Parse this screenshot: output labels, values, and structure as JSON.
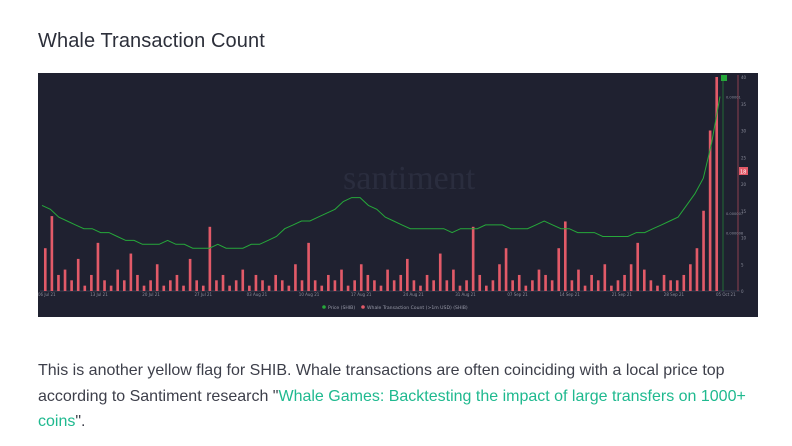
{
  "article": {
    "section_title": "Whale Transaction Count",
    "paragraph": {
      "before_link": "This is another yellow flag for SHIB. Whale transactions are often coinciding with a local price top according to Santiment research \"",
      "link_text": "Whale Games: Backtesting the impact of large transfers on 1000+ coins",
      "after_link": "\"."
    }
  },
  "chart_data": {
    "type": "bar",
    "watermark": "santiment",
    "x_ticks": [
      "06 Jul 21",
      "13 Jul 21",
      "20 Jul 21",
      "27 Jul 21",
      "03 Aug 21",
      "10 Aug 21",
      "17 Aug 21",
      "24 Aug 21",
      "31 Aug 21",
      "07 Sep 21",
      "14 Sep 21",
      "21 Sep 21",
      "28 Sep 21",
      "05 Oct 21"
    ],
    "y_right_price_ticks": [
      "0.00001",
      "0.000007",
      "0.000008"
    ],
    "y_right_count_ticks": [
      "40",
      "35",
      "30",
      "25",
      "20",
      "15",
      "10",
      "5",
      "0"
    ],
    "price_marker": "green",
    "count_marker": "18",
    "legend": [
      "Price (SHIB)",
      "Whale Transaction Count (>1m USD) (SHIB)"
    ],
    "colors": {
      "price": "#26a83a",
      "count": "#e25a68",
      "background": "#1f2130",
      "link": "#1fb98f"
    },
    "series": [
      {
        "name": "Price (SHIB)",
        "values": [
          7.2e-06,
          7.1e-06,
          6.9e-06,
          6.8e-06,
          6.7e-06,
          6.6e-06,
          6.6e-06,
          6.5e-06,
          6.5e-06,
          6.4e-06,
          6.3e-06,
          6.3e-06,
          6.2e-06,
          6.2e-06,
          6.2e-06,
          6.3e-06,
          6.2e-06,
          6.2e-06,
          6.1e-06,
          6.1e-06,
          6.1e-06,
          6.2e-06,
          6.1e-06,
          6.1e-06,
          6.1e-06,
          6.2e-06,
          6.2e-06,
          6.3e-06,
          6.4e-06,
          6.6e-06,
          6.7e-06,
          6.8e-06,
          6.8e-06,
          6.9e-06,
          7e-06,
          7.1e-06,
          7.3e-06,
          7.4e-06,
          7.4e-06,
          7.2e-06,
          7.1e-06,
          6.9e-06,
          6.8e-06,
          6.7e-06,
          6.6e-06,
          6.6e-06,
          6.6e-06,
          6.6e-06,
          6.6e-06,
          6.5e-06,
          6.6e-06,
          6.6e-06,
          6.6e-06,
          6.7e-06,
          6.7e-06,
          6.7e-06,
          6.6e-06,
          6.6e-06,
          6.6e-06,
          6.7e-06,
          6.8e-06,
          6.7e-06,
          6.6e-06,
          6.6e-06,
          6.5e-06,
          6.5e-06,
          6.5e-06,
          6.4e-06,
          6.4e-06,
          6.4e-06,
          6.4e-06,
          6.5e-06,
          6.5e-06,
          6.6e-06,
          6.7e-06,
          6.8e-06,
          6.9e-06,
          7.2e-06,
          7.5e-06,
          7.9e-06,
          8.8e-06,
          1e-05
        ]
      },
      {
        "name": "Whale Transaction Count (>1m USD) (SHIB)",
        "values": [
          8,
          14,
          3,
          4,
          2,
          6,
          1,
          3,
          9,
          2,
          1,
          4,
          2,
          7,
          3,
          1,
          2,
          5,
          1,
          2,
          3,
          1,
          6,
          2,
          1,
          12,
          2,
          3,
          1,
          2,
          4,
          1,
          3,
          2,
          1,
          3,
          2,
          1,
          5,
          2,
          9,
          2,
          1,
          3,
          2,
          4,
          1,
          2,
          5,
          3,
          2,
          1,
          4,
          2,
          3,
          6,
          2,
          1,
          3,
          2,
          7,
          2,
          4,
          1,
          2,
          12,
          3,
          1,
          2,
          5,
          8,
          2,
          3,
          1,
          2,
          4,
          3,
          2,
          8,
          13,
          2,
          4,
          1,
          3,
          2,
          5,
          1,
          2,
          3,
          5,
          9,
          4,
          2,
          1,
          3,
          2,
          2,
          3,
          5,
          8,
          15,
          30,
          40
        ]
      }
    ]
  }
}
